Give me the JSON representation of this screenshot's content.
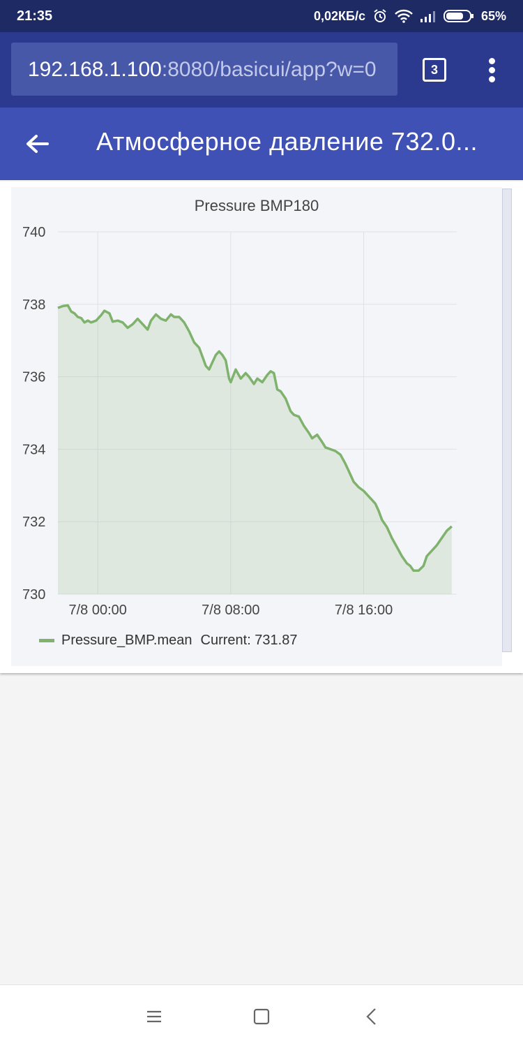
{
  "status": {
    "time": "21:35",
    "network_speed": "0,02КБ/с",
    "battery": "65%"
  },
  "browser": {
    "url_host": "192.168.1.100",
    "url_rest": ":8080/basicui/app?w=0",
    "tab_count": "3"
  },
  "appbar": {
    "title": "Атмосферное давление 732.0..."
  },
  "legend": {
    "series_label": "Pressure_BMP.mean",
    "current_label": "Current: 731.87"
  },
  "chart_data": {
    "type": "area",
    "title": "Pressure BMP180",
    "xlabel": "",
    "ylabel": "",
    "ylim": [
      730,
      740
    ],
    "yticks": [
      "740",
      "738",
      "736",
      "734",
      "732",
      "730"
    ],
    "xticks": [
      {
        "label": "7/8 00:00",
        "t": 0
      },
      {
        "label": "7/8 08:00",
        "t": 8
      },
      {
        "label": "7/8 16:00",
        "t": 16
      }
    ],
    "xrange": [
      -2.4,
      21.6
    ],
    "grid": true,
    "color": "#7eb26d",
    "series": [
      {
        "name": "Pressure_BMP.mean",
        "points": [
          [
            -2.4,
            737.9
          ],
          [
            -2.1,
            737.95
          ],
          [
            -1.8,
            737.97
          ],
          [
            -1.6,
            737.8
          ],
          [
            -1.4,
            737.75
          ],
          [
            -1.2,
            737.65
          ],
          [
            -1.0,
            737.62
          ],
          [
            -0.8,
            737.5
          ],
          [
            -0.6,
            737.55
          ],
          [
            -0.4,
            737.5
          ],
          [
            -0.1,
            737.55
          ],
          [
            0.2,
            737.7
          ],
          [
            0.4,
            737.82
          ],
          [
            0.7,
            737.75
          ],
          [
            0.9,
            737.52
          ],
          [
            1.2,
            737.55
          ],
          [
            1.5,
            737.5
          ],
          [
            1.8,
            737.35
          ],
          [
            2.1,
            737.45
          ],
          [
            2.4,
            737.6
          ],
          [
            2.7,
            737.45
          ],
          [
            3.0,
            737.3
          ],
          [
            3.2,
            737.55
          ],
          [
            3.5,
            737.72
          ],
          [
            3.8,
            737.6
          ],
          [
            4.1,
            737.55
          ],
          [
            4.4,
            737.72
          ],
          [
            4.6,
            737.65
          ],
          [
            4.9,
            737.65
          ],
          [
            5.2,
            737.5
          ],
          [
            5.5,
            737.25
          ],
          [
            5.8,
            736.95
          ],
          [
            6.1,
            736.8
          ],
          [
            6.3,
            736.55
          ],
          [
            6.5,
            736.3
          ],
          [
            6.7,
            736.2
          ],
          [
            6.9,
            736.4
          ],
          [
            7.1,
            736.6
          ],
          [
            7.3,
            736.7
          ],
          [
            7.5,
            736.6
          ],
          [
            7.7,
            736.45
          ],
          [
            7.9,
            735.95
          ],
          [
            8.0,
            735.85
          ],
          [
            8.3,
            736.2
          ],
          [
            8.6,
            735.95
          ],
          [
            8.9,
            736.1
          ],
          [
            9.1,
            736.0
          ],
          [
            9.4,
            735.8
          ],
          [
            9.6,
            735.95
          ],
          [
            9.9,
            735.85
          ],
          [
            10.2,
            736.05
          ],
          [
            10.4,
            736.15
          ],
          [
            10.6,
            736.1
          ],
          [
            10.8,
            735.65
          ],
          [
            11.0,
            735.6
          ],
          [
            11.3,
            735.4
          ],
          [
            11.6,
            735.05
          ],
          [
            11.8,
            734.95
          ],
          [
            12.1,
            734.9
          ],
          [
            12.4,
            734.65
          ],
          [
            12.7,
            734.45
          ],
          [
            12.9,
            734.3
          ],
          [
            13.2,
            734.4
          ],
          [
            13.5,
            734.2
          ],
          [
            13.7,
            734.05
          ],
          [
            14.0,
            734.0
          ],
          [
            14.3,
            733.95
          ],
          [
            14.6,
            733.85
          ],
          [
            14.9,
            733.6
          ],
          [
            15.1,
            733.4
          ],
          [
            15.4,
            733.1
          ],
          [
            15.7,
            732.95
          ],
          [
            16.0,
            732.85
          ],
          [
            16.3,
            732.7
          ],
          [
            16.5,
            732.6
          ],
          [
            16.7,
            732.5
          ],
          [
            16.9,
            732.3
          ],
          [
            17.1,
            732.05
          ],
          [
            17.4,
            731.85
          ],
          [
            17.7,
            731.55
          ],
          [
            18.0,
            731.3
          ],
          [
            18.3,
            731.05
          ],
          [
            18.6,
            730.85
          ],
          [
            18.8,
            730.78
          ],
          [
            19.0,
            730.65
          ],
          [
            19.3,
            730.65
          ],
          [
            19.6,
            730.78
          ],
          [
            19.8,
            731.05
          ],
          [
            20.1,
            731.2
          ],
          [
            20.4,
            731.35
          ],
          [
            20.7,
            731.55
          ],
          [
            21.0,
            731.75
          ],
          [
            21.3,
            731.87
          ]
        ]
      }
    ]
  }
}
